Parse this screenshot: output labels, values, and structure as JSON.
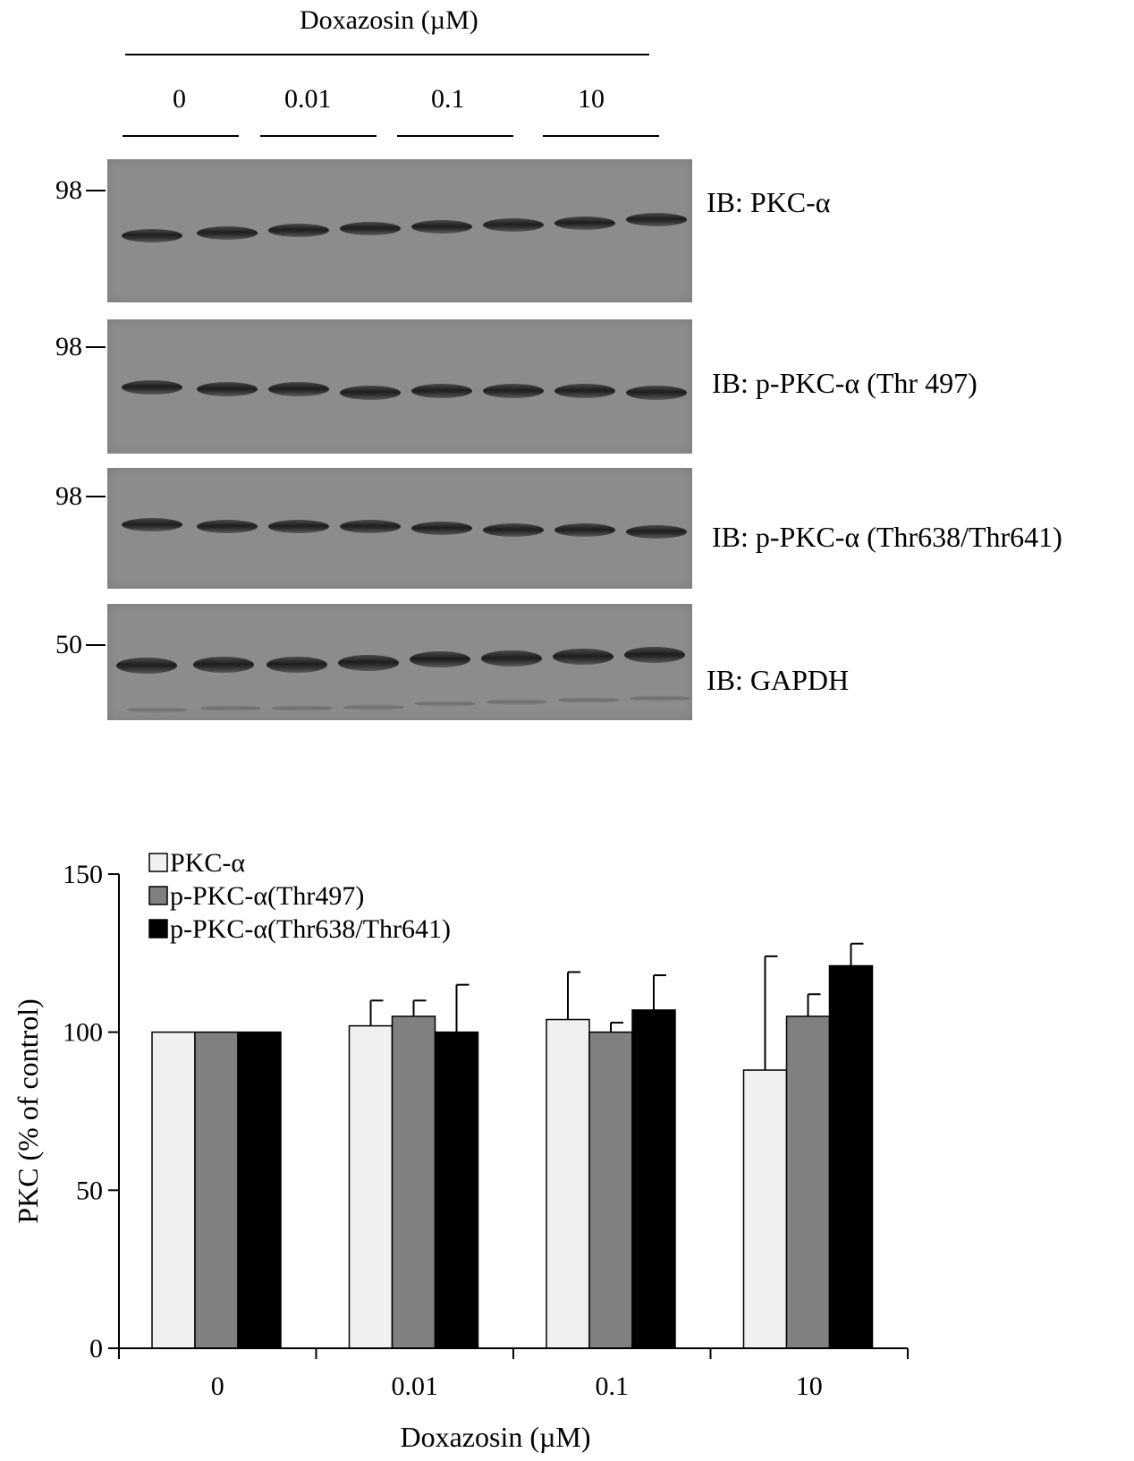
{
  "blot": {
    "treatment_title": "Doxazosin (µM)",
    "doses": [
      "0",
      "0.01",
      "0.1",
      "10"
    ],
    "panels": [
      {
        "label": "IB: PKC-α",
        "mw": "98"
      },
      {
        "label": "IB: p-PKC-α (Thr 497)",
        "mw": "98"
      },
      {
        "label": "IB: p-PKC-α (Thr638/Thr641)",
        "mw": "98"
      },
      {
        "label": "IB: GAPDH",
        "mw": "50"
      }
    ]
  },
  "chart_data": {
    "type": "bar",
    "categories": [
      "0",
      "0.01",
      "0.1",
      "10"
    ],
    "series": [
      {
        "name": "PKC-α",
        "values": [
          100,
          102,
          104,
          88
        ],
        "errors": [
          0,
          8,
          15,
          36
        ],
        "color": "#f0f0f0"
      },
      {
        "name": "p-PKC-α(Thr497)",
        "values": [
          100,
          105,
          100,
          105
        ],
        "errors": [
          0,
          5,
          3,
          7
        ],
        "color": "#808080"
      },
      {
        "name": "p-PKC-α(Thr638/Thr641)",
        "values": [
          100,
          100,
          107,
          121
        ],
        "errors": [
          0,
          15,
          11,
          7
        ],
        "color": "#000000"
      }
    ],
    "xlabel": "Doxazosin (µM)",
    "ylabel": "PKC (% of control)",
    "ylim": [
      0,
      150
    ],
    "yticks": [
      "0",
      "50",
      "100",
      "150"
    ],
    "grid": false,
    "legend_position": "top-left"
  }
}
